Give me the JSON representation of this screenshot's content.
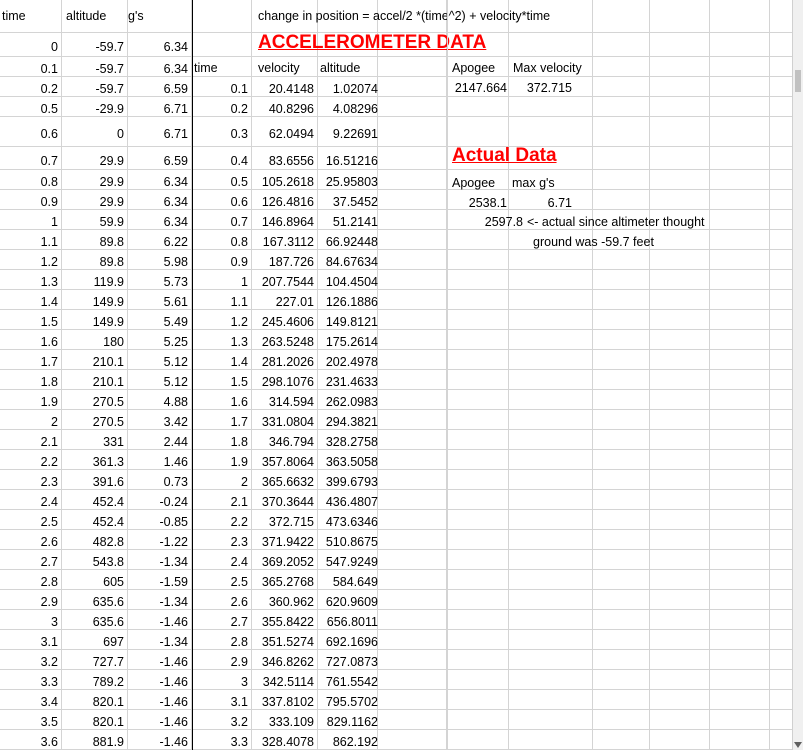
{
  "formula_note": "change in position = accel/2 *(time^2) + velocity*time",
  "accel_title": "ACCELEROMETER DATA",
  "actual_title": "Actual Data",
  "headers": {
    "time": "time",
    "altitude": "altitude",
    "gs": "g's",
    "time2": "time",
    "velocity": "velocity",
    "altitude2": "altitude"
  },
  "summary": {
    "apogee_label": "Apogee",
    "maxvel_label": "Max velocity",
    "apogee_value": "2147.664",
    "maxvel_value": "372.715",
    "actual_apogee_label": "Apogee",
    "maxg_label": "max g's",
    "actual_apogee_value": "2538.1",
    "maxg_value": "6.71",
    "corrected_value": "2597.8",
    "note_line1": "<- actual since altimeter thought",
    "note_line2": "ground was -59.7 feet"
  },
  "left_rows": [
    [
      "0",
      "-59.7",
      "6.34"
    ],
    [
      "0.1",
      "-59.7",
      "6.34"
    ],
    [
      "0.2",
      "-59.7",
      "6.59"
    ],
    [
      "0.5",
      "-29.9",
      "6.71"
    ],
    [
      "0.6",
      "0",
      "6.71"
    ],
    [
      "0.7",
      "29.9",
      "6.59"
    ],
    [
      "0.8",
      "29.9",
      "6.34"
    ],
    [
      "0.9",
      "29.9",
      "6.34"
    ],
    [
      "1",
      "59.9",
      "6.34"
    ],
    [
      "1.1",
      "89.8",
      "6.22"
    ],
    [
      "1.2",
      "89.8",
      "5.98"
    ],
    [
      "1.3",
      "119.9",
      "5.73"
    ],
    [
      "1.4",
      "149.9",
      "5.61"
    ],
    [
      "1.5",
      "149.9",
      "5.49"
    ],
    [
      "1.6",
      "180",
      "5.25"
    ],
    [
      "1.7",
      "210.1",
      "5.12"
    ],
    [
      "1.8",
      "210.1",
      "5.12"
    ],
    [
      "1.9",
      "270.5",
      "4.88"
    ],
    [
      "2",
      "270.5",
      "3.42"
    ],
    [
      "2.1",
      "331",
      "2.44"
    ],
    [
      "2.2",
      "361.3",
      "1.46"
    ],
    [
      "2.3",
      "391.6",
      "0.73"
    ],
    [
      "2.4",
      "452.4",
      "-0.24"
    ],
    [
      "2.5",
      "452.4",
      "-0.85"
    ],
    [
      "2.6",
      "482.8",
      "-1.22"
    ],
    [
      "2.7",
      "543.8",
      "-1.34"
    ],
    [
      "2.8",
      "605",
      "-1.59"
    ],
    [
      "2.9",
      "635.6",
      "-1.34"
    ],
    [
      "3",
      "635.6",
      "-1.46"
    ],
    [
      "3.1",
      "697",
      "-1.34"
    ],
    [
      "3.2",
      "727.7",
      "-1.46"
    ],
    [
      "3.3",
      "789.2",
      "-1.46"
    ],
    [
      "3.4",
      "820.1",
      "-1.46"
    ],
    [
      "3.5",
      "820.1",
      "-1.46"
    ],
    [
      "3.6",
      "881.9",
      "-1.46"
    ]
  ],
  "right_rows": [
    [
      "0.1",
      "20.4148",
      "1.02074"
    ],
    [
      "0.2",
      "40.8296",
      "4.08296"
    ],
    [
      "0.3",
      "62.0494",
      "9.22691"
    ],
    [
      "0.4",
      "83.6556",
      "16.51216"
    ],
    [
      "0.5",
      "105.2618",
      "25.95803"
    ],
    [
      "0.6",
      "126.4816",
      "37.5452"
    ],
    [
      "0.7",
      "146.8964",
      "51.2141"
    ],
    [
      "0.8",
      "167.3112",
      "66.92448"
    ],
    [
      "0.9",
      "187.726",
      "84.67634"
    ],
    [
      "1",
      "207.7544",
      "104.4504"
    ],
    [
      "1.1",
      "227.01",
      "126.1886"
    ],
    [
      "1.2",
      "245.4606",
      "149.8121"
    ],
    [
      "1.3",
      "263.5248",
      "175.2614"
    ],
    [
      "1.4",
      "281.2026",
      "202.4978"
    ],
    [
      "1.5",
      "298.1076",
      "231.4633"
    ],
    [
      "1.6",
      "314.594",
      "262.0983"
    ],
    [
      "1.7",
      "331.0804",
      "294.3821"
    ],
    [
      "1.8",
      "346.794",
      "328.2758"
    ],
    [
      "1.9",
      "357.8064",
      "363.5058"
    ],
    [
      "2",
      "365.6632",
      "399.6793"
    ],
    [
      "2.1",
      "370.3644",
      "436.4807"
    ],
    [
      "2.2",
      "372.715",
      "473.6346"
    ],
    [
      "2.3",
      "371.9422",
      "510.8675"
    ],
    [
      "2.4",
      "369.2052",
      "547.9249"
    ],
    [
      "2.5",
      "365.2768",
      "584.649"
    ],
    [
      "2.6",
      "360.962",
      "620.9609"
    ],
    [
      "2.7",
      "355.8422",
      "656.8011"
    ],
    [
      "2.8",
      "351.5274",
      "692.1696"
    ],
    [
      "2.9",
      "346.8262",
      "727.0873"
    ],
    [
      "3",
      "342.5114",
      "761.5542"
    ],
    [
      "3.1",
      "337.8102",
      "795.5702"
    ],
    [
      "3.2",
      "333.109",
      "829.1162"
    ],
    [
      "3.3",
      "328.4078",
      "862.192"
    ]
  ]
}
